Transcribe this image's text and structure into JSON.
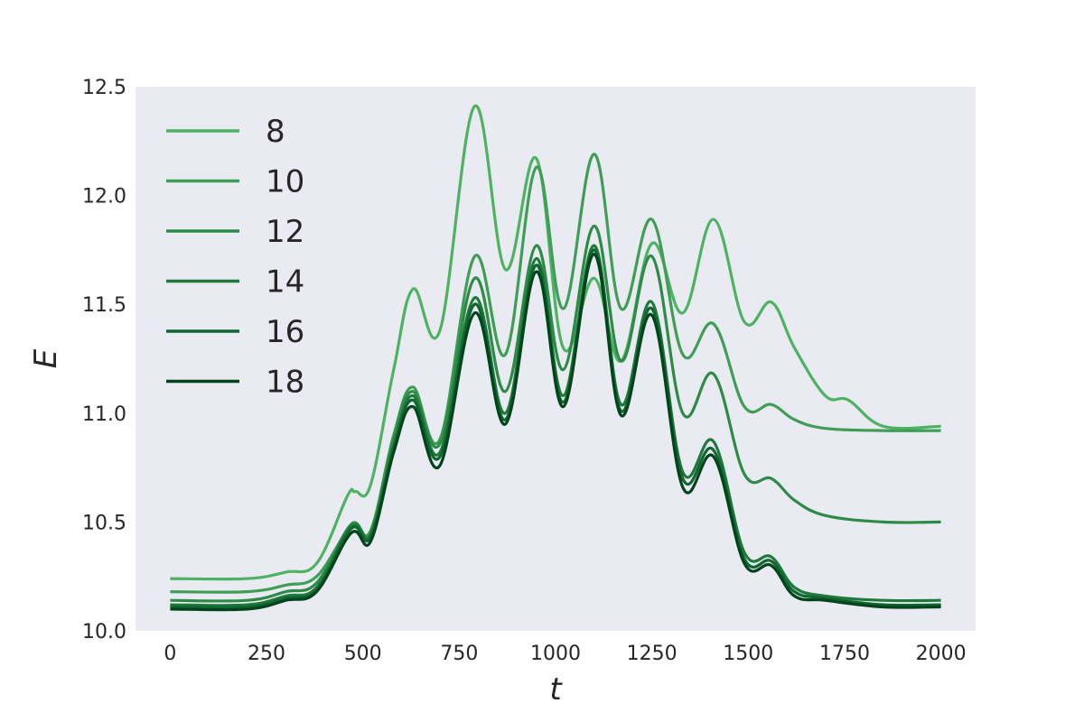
{
  "chart_data": {
    "type": "line",
    "title": "",
    "xlabel": "t",
    "ylabel": "E",
    "xlim": [
      -90,
      2090
    ],
    "ylim": [
      10.0,
      12.5
    ],
    "xticks": [
      0,
      250,
      500,
      750,
      1000,
      1250,
      1500,
      1750,
      2000
    ],
    "yticks": [
      10.0,
      10.5,
      11.0,
      11.5,
      12.0,
      12.5
    ],
    "xtick_labels": [
      "0",
      "250",
      "500",
      "750",
      "1000",
      "1250",
      "1500",
      "1750",
      "2000"
    ],
    "ytick_labels": [
      "10.0",
      "10.5",
      "11.0",
      "11.5",
      "12.0",
      "12.5"
    ],
    "grid": false,
    "legend_position": "upper-left",
    "background": "#eaeaf2",
    "series": [
      {
        "name": "8",
        "color": "#4db362",
        "x": [
          0,
          200,
          300,
          380,
          460,
          480,
          520,
          580,
          630,
          700,
          790,
          870,
          950,
          1020,
          1100,
          1170,
          1250,
          1330,
          1410,
          1490,
          1560,
          1620,
          1700,
          1760,
          1850,
          2000
        ],
        "y": [
          10.24,
          10.24,
          10.27,
          10.31,
          10.62,
          10.64,
          10.67,
          11.2,
          11.57,
          11.38,
          12.41,
          11.66,
          12.17,
          11.3,
          11.62,
          11.24,
          11.78,
          11.46,
          11.89,
          11.42,
          11.51,
          11.3,
          11.08,
          11.06,
          10.94,
          10.94
        ]
      },
      {
        "name": "10",
        "color": "#3e9e55",
        "x": [
          0,
          200,
          300,
          380,
          470,
          520,
          580,
          630,
          700,
          790,
          870,
          950,
          1020,
          1100,
          1170,
          1250,
          1330,
          1410,
          1490,
          1560,
          1620,
          1700,
          1850,
          2000
        ],
        "y": [
          10.18,
          10.18,
          10.21,
          10.25,
          10.48,
          10.46,
          10.9,
          11.12,
          10.88,
          11.72,
          11.27,
          12.13,
          11.48,
          12.19,
          11.48,
          11.89,
          11.27,
          11.41,
          11.03,
          11.04,
          10.97,
          10.93,
          10.92,
          10.92
        ]
      },
      {
        "name": "12",
        "color": "#2e8b46",
        "x": [
          0,
          200,
          300,
          380,
          470,
          520,
          580,
          630,
          700,
          790,
          870,
          950,
          1020,
          1100,
          1170,
          1250,
          1330,
          1410,
          1490,
          1560,
          1620,
          1700,
          1850,
          2000
        ],
        "y": [
          10.14,
          10.14,
          10.18,
          10.22,
          10.49,
          10.45,
          10.88,
          11.1,
          10.86,
          11.62,
          11.1,
          11.77,
          11.2,
          11.86,
          11.24,
          11.72,
          11.0,
          11.18,
          10.72,
          10.7,
          10.6,
          10.53,
          10.5,
          10.5
        ]
      },
      {
        "name": "14",
        "color": "#1f7a3a",
        "x": [
          0,
          200,
          300,
          380,
          470,
          520,
          580,
          630,
          700,
          790,
          870,
          950,
          1020,
          1100,
          1170,
          1250,
          1330,
          1410,
          1490,
          1560,
          1620,
          1700,
          1850,
          2000
        ],
        "y": [
          10.12,
          10.12,
          10.16,
          10.2,
          10.48,
          10.44,
          10.85,
          11.08,
          10.82,
          11.53,
          11.0,
          11.71,
          11.08,
          11.77,
          11.04,
          11.51,
          10.73,
          10.87,
          10.36,
          10.34,
          10.2,
          10.16,
          10.14,
          10.14
        ]
      },
      {
        "name": "16",
        "color": "#0f6630",
        "x": [
          0,
          200,
          300,
          380,
          470,
          520,
          580,
          630,
          700,
          790,
          870,
          950,
          1020,
          1100,
          1170,
          1250,
          1330,
          1410,
          1490,
          1560,
          1620,
          1700,
          1850,
          2000
        ],
        "y": [
          10.11,
          10.11,
          10.15,
          10.19,
          10.47,
          10.43,
          10.84,
          11.06,
          10.8,
          11.5,
          10.97,
          11.68,
          11.05,
          11.75,
          11.01,
          11.48,
          10.7,
          10.83,
          10.33,
          10.32,
          10.18,
          10.15,
          10.12,
          10.12
        ]
      },
      {
        "name": "18",
        "color": "#00441b",
        "x": [
          0,
          200,
          300,
          380,
          470,
          520,
          580,
          630,
          700,
          790,
          870,
          950,
          1020,
          1100,
          1170,
          1250,
          1330,
          1410,
          1490,
          1560,
          1620,
          1700,
          1850,
          2000
        ],
        "y": [
          10.1,
          10.1,
          10.14,
          10.18,
          10.45,
          10.41,
          10.82,
          11.03,
          10.76,
          11.46,
          10.95,
          11.65,
          11.03,
          11.73,
          10.99,
          11.45,
          10.66,
          10.8,
          10.31,
          10.3,
          10.16,
          10.14,
          10.11,
          10.11
        ]
      }
    ]
  }
}
